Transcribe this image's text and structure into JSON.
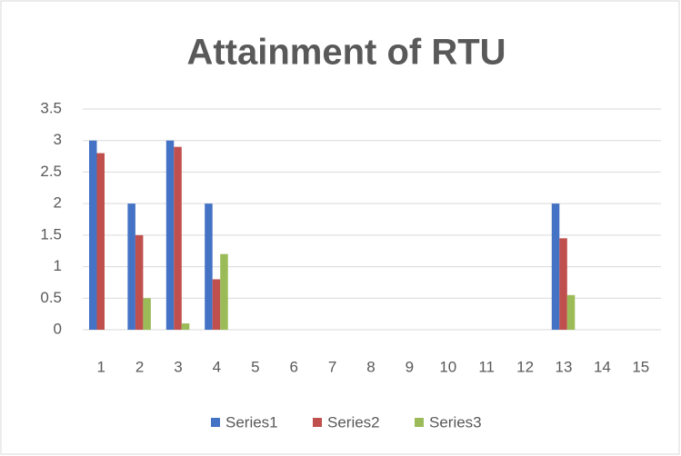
{
  "chart_data": {
    "type": "bar",
    "title": "Attainment of RTU",
    "categories": [
      "1",
      "2",
      "3",
      "4",
      "5",
      "6",
      "7",
      "8",
      "9",
      "10",
      "11",
      "12",
      "13",
      "14",
      "15"
    ],
    "series": [
      {
        "name": "Series1",
        "color": "#4472c4",
        "values": [
          3,
          2,
          3,
          2,
          0,
          0,
          0,
          0,
          0,
          0,
          0,
          0,
          2,
          0,
          0
        ]
      },
      {
        "name": "Series2",
        "color": "#c0504d",
        "values": [
          2.8,
          1.5,
          2.9,
          0.8,
          0,
          0,
          0,
          0,
          0,
          0,
          0,
          0,
          1.45,
          0,
          0
        ]
      },
      {
        "name": "Series3",
        "color": "#9bbb59",
        "values": [
          0,
          0.5,
          0.1,
          1.2,
          0,
          0,
          0,
          0,
          0,
          0,
          0,
          0,
          0.55,
          0,
          0
        ]
      }
    ],
    "ylim": [
      0,
      3.5
    ],
    "yticks": [
      0,
      0.5,
      1,
      1.5,
      2,
      2.5,
      3,
      3.5
    ],
    "grid": true,
    "legend": "bottom"
  }
}
